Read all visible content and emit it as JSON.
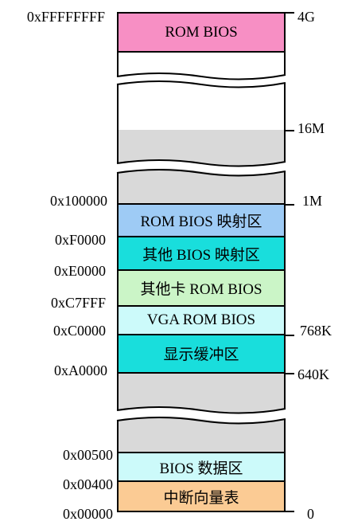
{
  "regions": {
    "rom_bios_top": {
      "label": "ROM BIOS",
      "color": "#f78fc4"
    },
    "rom_bios_map": {
      "label": "ROM BIOS 映射区",
      "color": "#9ecbf5"
    },
    "other_bios_map": {
      "label": "其他 BIOS 映射区",
      "color": "#19dedc"
    },
    "other_card_rom": {
      "label": "其他卡 ROM BIOS",
      "color": "#cbf5c7"
    },
    "vga_rom": {
      "label": "VGA ROM BIOS",
      "color": "#ccfafa"
    },
    "display_buffer": {
      "label": "显示缓冲区",
      "color": "#19dedc"
    },
    "bios_data": {
      "label": "BIOS 数据区",
      "color": "#ccfafa"
    },
    "interrupt_vector": {
      "label": "中断向量表",
      "color": "#fbcb94"
    },
    "empty_gray": {
      "color": "#d9d9d9"
    }
  },
  "addresses": {
    "a_top": "0xFFFFFFFF",
    "a_100000": "0x100000",
    "a_F0000": "0xF0000",
    "a_E0000": "0xE0000",
    "a_C7FFF": "0xC7FFF",
    "a_C0000": "0xC0000",
    "a_A0000": "0xA0000",
    "a_00500": "0x00500",
    "a_00400": "0x00400",
    "a_00000": "0x00000"
  },
  "sizes": {
    "s_4G": "4G",
    "s_16M": "16M",
    "s_1M": "1M",
    "s_768K": "768K",
    "s_640K": "640K",
    "s_0": "0"
  }
}
